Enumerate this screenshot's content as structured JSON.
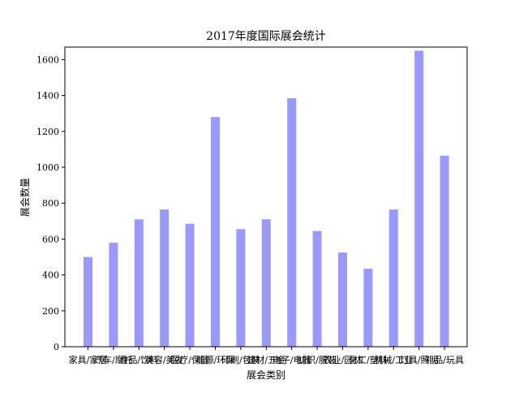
{
  "chart_data": {
    "type": "bar",
    "title": "2017年度国际展会统计",
    "xlabel": "展会类别",
    "ylabel": "展会数量",
    "categories": [
      "家具/家居",
      "汽车/摩托",
      "食品/饮料",
      "美容/美发",
      "医疗/保健",
      "能源/环保",
      "印刷/包装",
      "建材/五金",
      "电子/电器",
      "纺织/服装",
      "农业/园林",
      "化工/塑料",
      "机械/工业",
      "灯具/照明",
      "礼品/玩具"
    ],
    "values": [
      500,
      580,
      710,
      765,
      685,
      1280,
      655,
      710,
      1385,
      645,
      525,
      435,
      765,
      1650,
      1065
    ],
    "ylim": [
      0,
      1670
    ],
    "yticks": [
      0,
      200,
      400,
      600,
      800,
      1000,
      1200,
      1400,
      1600
    ],
    "bar_color": "#9999ff",
    "grid": false,
    "legend": "none"
  }
}
